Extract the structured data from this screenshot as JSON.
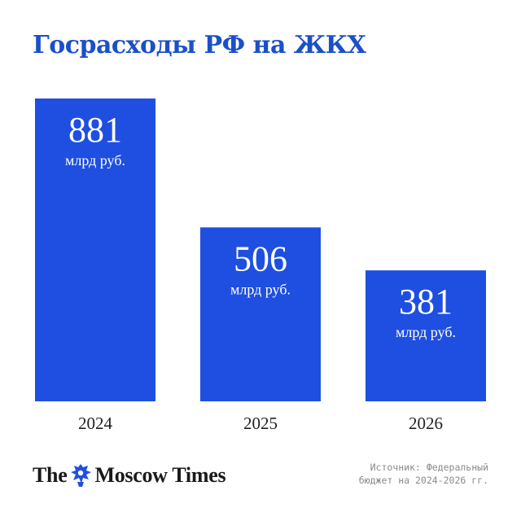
{
  "title": "Госрасходы РФ на ЖКХ",
  "chart_data": {
    "type": "bar",
    "title": "Госрасходы РФ на ЖКХ",
    "categories": [
      "2024",
      "2025",
      "2026"
    ],
    "values": [
      881,
      506,
      381
    ],
    "value_labels": [
      "881",
      "506",
      "381"
    ],
    "unit_label": "млрд руб.",
    "ylim": [
      0,
      881
    ],
    "grid": false,
    "legend": "none",
    "bar_color": "#1f4fe0"
  },
  "logo": {
    "part1": "The",
    "part2": "Moscow Times",
    "emblem_icon": "st-george-emblem-icon"
  },
  "source": {
    "line1": "Источник: Федеральный",
    "line2": "бюджет на 2024-2026 гг."
  }
}
